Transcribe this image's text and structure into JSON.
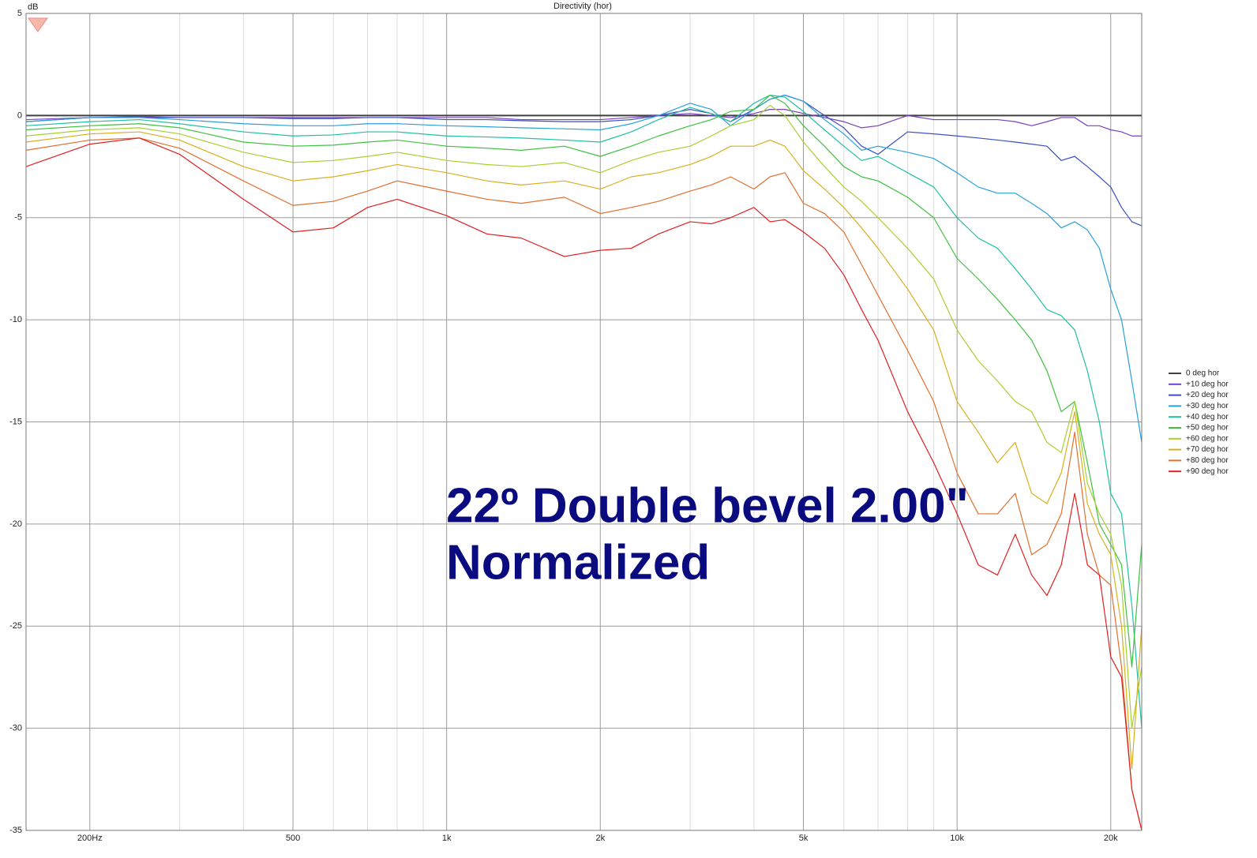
{
  "chart_data": {
    "type": "line",
    "title": "Directivity (hor)",
    "y_label": "dB",
    "annotation": [
      "22º Double bevel 2.00\"",
      "Normalized"
    ],
    "x_scale": "log",
    "xlim": [
      150,
      23000
    ],
    "ylim": [
      -35,
      5
    ],
    "xticks": [
      {
        "value": 200,
        "label": "200Hz"
      },
      500,
      {
        "value": 1000,
        "label": "1k"
      },
      {
        "value": 2000,
        "label": "2k"
      },
      {
        "value": 5000,
        "label": "5k"
      },
      {
        "value": 10000,
        "label": "10k"
      },
      {
        "value": 20000,
        "label": "20k"
      }
    ],
    "xminorticks": [
      300,
      400,
      600,
      700,
      800,
      900,
      3000,
      4000,
      6000,
      7000,
      8000,
      9000
    ],
    "yticks": [
      5,
      0,
      -5,
      -10,
      -15,
      -20,
      -25,
      -30,
      -35
    ],
    "grid": true,
    "legend": "right",
    "x": [
      150,
      200,
      250,
      300,
      400,
      500,
      600,
      700,
      800,
      1000,
      1200,
      1400,
      1700,
      2000,
      2300,
      2600,
      3000,
      3300,
      3600,
      4000,
      4300,
      4600,
      5000,
      5500,
      6000,
      6500,
      7000,
      8000,
      9000,
      10000,
      11000,
      12000,
      13000,
      14000,
      15000,
      16000,
      17000,
      18000,
      19000,
      20000,
      21000,
      22000,
      23000
    ],
    "series": [
      {
        "name": "0 deg hor",
        "color": "#404040",
        "values": [
          0,
          0,
          0,
          0,
          0,
          0,
          0,
          0,
          0,
          0,
          0,
          0,
          0,
          0,
          0,
          0,
          0,
          0,
          0,
          0,
          0,
          0,
          0,
          0,
          0,
          0,
          0,
          0,
          0,
          0,
          0,
          0,
          0,
          0,
          0,
          0,
          0,
          0,
          0,
          0,
          0,
          0,
          0
        ]
      },
      {
        "name": "+10 deg hor",
        "color": "#7b3fbf",
        "values": [
          -0.2,
          -0.1,
          -0.1,
          -0.1,
          -0.1,
          -0.1,
          -0.1,
          -0.1,
          -0.1,
          -0.1,
          -0.1,
          -0.2,
          -0.2,
          -0.2,
          -0.1,
          0,
          0.1,
          0,
          -0.1,
          0.1,
          0.3,
          0.3,
          0.1,
          -0.1,
          -0.3,
          -0.6,
          -0.5,
          0,
          -0.2,
          -0.2,
          -0.2,
          -0.2,
          -0.3,
          -0.5,
          -0.3,
          -0.1,
          -0.1,
          -0.5,
          -0.5,
          -0.7,
          -0.8,
          -1.0,
          -1.0
        ]
      },
      {
        "name": "+20 deg hor",
        "color": "#3a4fc0",
        "values": [
          -0.3,
          -0.1,
          -0.05,
          -0.1,
          -0.1,
          -0.15,
          -0.15,
          -0.1,
          -0.1,
          -0.2,
          -0.2,
          -0.25,
          -0.3,
          -0.3,
          -0.2,
          0,
          0.3,
          0.1,
          -0.3,
          0.3,
          0.8,
          1.0,
          0.7,
          0,
          -0.6,
          -1.5,
          -1.9,
          -0.8,
          -0.9,
          -1.0,
          -1.1,
          -1.2,
          -1.3,
          -1.4,
          -1.5,
          -2.2,
          -2.0,
          -2.5,
          -3.0,
          -3.5,
          -4.5,
          -5.2,
          -5.4
        ]
      },
      {
        "name": "+30 deg hor",
        "color": "#2aa0d8",
        "values": [
          -0.3,
          -0.1,
          -0.1,
          -0.2,
          -0.4,
          -0.5,
          -0.5,
          -0.4,
          -0.4,
          -0.5,
          -0.55,
          -0.6,
          -0.65,
          -0.7,
          -0.4,
          0,
          0.6,
          0.3,
          -0.5,
          0.3,
          0.8,
          1.0,
          0.7,
          -0.2,
          -0.9,
          -1.7,
          -1.5,
          -1.8,
          -2.1,
          -2.8,
          -3.5,
          -3.8,
          -3.8,
          -4.3,
          -4.8,
          -5.5,
          -5.2,
          -5.6,
          -6.5,
          -8.5,
          -10,
          -13,
          -16
        ]
      },
      {
        "name": "+40 deg hor",
        "color": "#20c0a0",
        "values": [
          -0.5,
          -0.3,
          -0.2,
          -0.4,
          -0.8,
          -1.0,
          -0.95,
          -0.8,
          -0.8,
          -1.0,
          -1.05,
          -1.1,
          -1.2,
          -1.3,
          -0.8,
          -0.2,
          0.4,
          0.1,
          -0.3,
          0.6,
          1.0,
          0.9,
          0.2,
          -0.7,
          -1.5,
          -2.2,
          -2.0,
          -2.8,
          -3.5,
          -5.0,
          -6.0,
          -6.5,
          -7.5,
          -8.5,
          -9.5,
          -9.8,
          -10.5,
          -12.5,
          -15,
          -18.5,
          -19.5,
          -24,
          -30
        ]
      },
      {
        "name": "+50 deg hor",
        "color": "#40c040",
        "values": [
          -0.7,
          -0.5,
          -0.4,
          -0.6,
          -1.3,
          -1.5,
          -1.45,
          -1.3,
          -1.2,
          -1.5,
          -1.6,
          -1.7,
          -1.5,
          -2.0,
          -1.5,
          -1.0,
          -0.5,
          -0.2,
          0.2,
          0.3,
          1.0,
          0.6,
          -0.5,
          -1.5,
          -2.5,
          -3.0,
          -3.2,
          -4.0,
          -5.0,
          -7.0,
          -8.0,
          -9.0,
          -10.0,
          -11.0,
          -12.5,
          -14.5,
          -14.0,
          -17,
          -20,
          -21,
          -22,
          -27,
          -21
        ]
      },
      {
        "name": "+60 deg hor",
        "color": "#a8d030",
        "values": [
          -1.0,
          -0.7,
          -0.6,
          -0.9,
          -1.8,
          -2.3,
          -2.2,
          -2.0,
          -1.8,
          -2.2,
          -2.4,
          -2.5,
          -2.3,
          -2.8,
          -2.2,
          -1.8,
          -1.5,
          -1.0,
          -0.5,
          -0.2,
          0.5,
          0,
          -1.3,
          -2.5,
          -3.5,
          -4.2,
          -5.0,
          -6.5,
          -8.0,
          -10.5,
          -12.0,
          -13.0,
          -14.0,
          -14.5,
          -16,
          -16.5,
          -14.0,
          -18,
          -19.5,
          -20.5,
          -23,
          -30,
          -27
        ]
      },
      {
        "name": "+70 deg hor",
        "color": "#d8b020",
        "values": [
          -1.3,
          -0.9,
          -0.8,
          -1.2,
          -2.5,
          -3.2,
          -3.0,
          -2.7,
          -2.4,
          -2.8,
          -3.2,
          -3.4,
          -3.2,
          -3.6,
          -3.0,
          -2.8,
          -2.4,
          -2.0,
          -1.5,
          -1.5,
          -1.2,
          -1.5,
          -2.7,
          -3.6,
          -4.5,
          -5.5,
          -6.5,
          -8.5,
          -10.5,
          -14.0,
          -15.5,
          -17,
          -16,
          -18.5,
          -19,
          -17.5,
          -14.5,
          -19,
          -20.5,
          -21.5,
          -25,
          -32,
          -25
        ]
      },
      {
        "name": "+80 deg hor",
        "color": "#e07030",
        "values": [
          -1.7,
          -1.2,
          -1.1,
          -1.6,
          -3.2,
          -4.4,
          -4.2,
          -3.7,
          -3.2,
          -3.7,
          -4.1,
          -4.3,
          -4.0,
          -4.8,
          -4.5,
          -4.2,
          -3.7,
          -3.4,
          -3.0,
          -3.6,
          -3.0,
          -2.8,
          -4.3,
          -4.8,
          -5.7,
          -7.3,
          -8.8,
          -11.5,
          -14,
          -17.5,
          -19.5,
          -19.5,
          -18.5,
          -21.5,
          -21,
          -19.5,
          -15.5,
          -20.5,
          -22.5,
          -23,
          -27,
          -33,
          -35
        ]
      },
      {
        "name": "+90 deg hor",
        "color": "#e02020",
        "values": [
          -2.5,
          -1.4,
          -1.1,
          -1.9,
          -4.1,
          -5.7,
          -5.5,
          -4.5,
          -4.1,
          -4.9,
          -5.8,
          -6.0,
          -6.9,
          -6.6,
          -6.5,
          -5.8,
          -5.2,
          -5.3,
          -5.0,
          -4.5,
          -5.2,
          -5.1,
          -5.7,
          -6.5,
          -7.8,
          -9.5,
          -11,
          -14.5,
          -17,
          -19.5,
          -22,
          -22.5,
          -20.5,
          -22.5,
          -23.5,
          -22,
          -18.5,
          -22,
          -22.5,
          -26.5,
          -27.5,
          -33,
          -35
        ]
      }
    ]
  }
}
